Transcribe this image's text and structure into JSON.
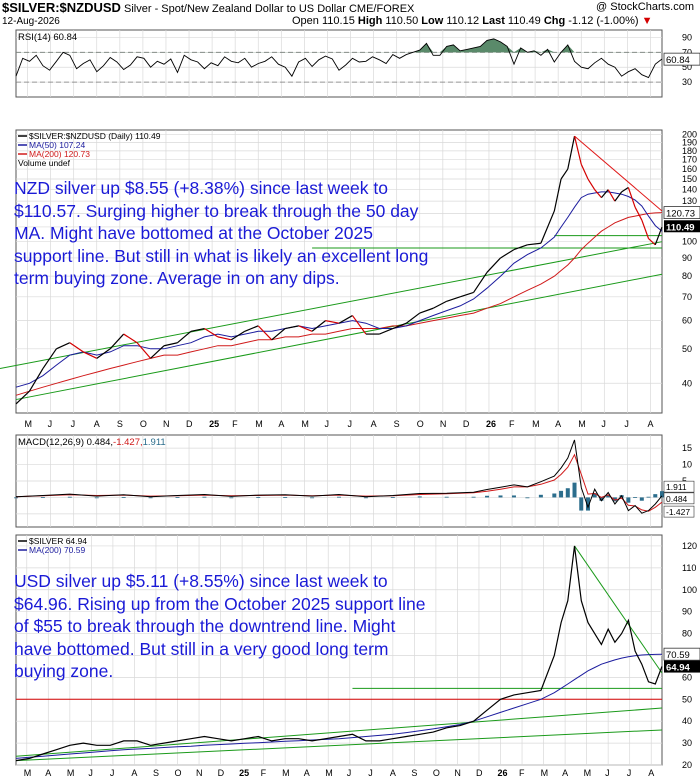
{
  "header": {
    "symbol": "$SILVER:$NZDUSD",
    "description": "Silver - Spot/New Zealand Dollar to US Dollar  CME/FOREX",
    "watermark": "@ StockCharts.com",
    "date": "12-Aug-2026",
    "quote": {
      "open_label": "Open",
      "open": "110.15",
      "high_label": "High",
      "high": "110.50",
      "low_label": "Low",
      "low": "110.12",
      "last_label": "Last",
      "last": "110.49",
      "chg_label": "Chg",
      "chg": "-1.12 (-1.00%)",
      "chg_arrow": "▼"
    }
  },
  "annotations": {
    "nzd_note": "NZD silver up $8.55 (+8.38%) since last week to $110.57. Surging higher to break through the 50 day MA. Might have bottomed at the October 2025 support line. But still in what is likely an excellent long term buying zone. Average in on any dips.",
    "usd_note": "USD silver up $5.11 (+8.55%) since last week to $64.96. Rising up from the October 2025 support line of $55 to break through the downtrend line. Might have bottomed. But still in a very good long term buying zone."
  },
  "colors": {
    "price_up": "#000000",
    "price_down": "#d40000",
    "ma50": "#1c1c9e",
    "ma200": "#d01a1a",
    "trendline": "#1a9a1a",
    "resistance": "#e01818",
    "rsi_line": "#000000",
    "rsi_overbought_fill": "#5a8a6a",
    "macd_line": "#000000",
    "macd_signal": "#d01a1a",
    "macd_hist": "#2b6d8c",
    "grid": "#d9d9d9",
    "note_text": "#1a1ad6"
  },
  "chart_data": [
    {
      "type": "line",
      "id": "rsi",
      "title": "RSI(14) 60.84",
      "last_value": "60.84",
      "ylim": [
        10,
        100
      ],
      "y_ticks": [
        "90",
        "70",
        "50",
        "30"
      ],
      "levels": [
        70,
        30
      ],
      "x": [
        0,
        6,
        12,
        18,
        24,
        30,
        36,
        42,
        48,
        54,
        60,
        66,
        72,
        78,
        84,
        90,
        96,
        102,
        108,
        114,
        120,
        126,
        132,
        138,
        144,
        150,
        156,
        162,
        168,
        174,
        180,
        186,
        192,
        198,
        204,
        210,
        216,
        222,
        228,
        234,
        240,
        246,
        252,
        258,
        264,
        270,
        276,
        282,
        288,
        294,
        300,
        306,
        312,
        318,
        324,
        330,
        336,
        342,
        348,
        354,
        360,
        366,
        372,
        378,
        384,
        390,
        396,
        402,
        408,
        414,
        420,
        426,
        432,
        438,
        444,
        450,
        456,
        462,
        468,
        474,
        480,
        486,
        492,
        498,
        504,
        510,
        516,
        522,
        528,
        534,
        540,
        546,
        552,
        558,
        564,
        570,
        576
      ],
      "values": [
        38,
        62,
        58,
        66,
        52,
        46,
        58,
        70,
        66,
        48,
        55,
        60,
        44,
        52,
        63,
        57,
        47,
        53,
        64,
        62,
        50,
        58,
        54,
        61,
        43,
        66,
        60,
        57,
        48,
        56,
        52,
        64,
        58,
        56,
        62,
        50,
        55,
        58,
        64,
        54,
        50,
        38,
        57,
        62,
        51,
        60,
        65,
        61,
        46,
        53,
        62,
        57,
        58,
        64,
        60,
        55,
        67,
        62,
        67,
        70,
        73,
        82,
        66,
        66,
        78,
        80,
        72,
        74,
        76,
        78,
        86,
        88,
        84,
        78,
        54,
        76,
        70,
        72,
        66,
        74,
        57,
        70,
        80,
        58,
        50,
        48,
        56,
        62,
        54,
        50,
        38,
        44,
        48,
        40,
        36,
        54,
        61
      ]
    },
    {
      "type": "line",
      "id": "price_nzd",
      "title": "$SILVER:$NZDUSD (Daily) 110.49",
      "legend": [
        {
          "label": "$SILVER:$NZDUSD (Daily) 110.49",
          "swatch": "price"
        },
        {
          "label": "MA(50) 107.24",
          "swatch": "ma50"
        },
        {
          "label": "MA(200) 120.73",
          "swatch": "ma200"
        },
        {
          "label": "Volume undef",
          "swatch": "none"
        }
      ],
      "y_scale": "log",
      "ylim": [
        33,
        206
      ],
      "y_ticks": [
        "200",
        "190",
        "180",
        "170",
        "160",
        "150",
        "140",
        "130",
        "120",
        "110",
        "100",
        "90",
        "80",
        "70",
        "60",
        "50",
        "40"
      ],
      "price_tags": [
        {
          "text": "120.73",
          "y": 120.73,
          "style": "outline"
        },
        {
          "text": "110.49",
          "y": 110.49,
          "style": "filled"
        }
      ],
      "x_labels": [
        "M",
        "J",
        "J",
        "A",
        "S",
        "O",
        "N",
        "D",
        "25",
        "F",
        "M",
        "A",
        "M",
        "J",
        "J",
        "A",
        "S",
        "O",
        "N",
        "D",
        "26",
        "F",
        "M",
        "A",
        "M",
        "J",
        "J",
        "A"
      ],
      "bold_x_labels": [
        "25",
        "26"
      ],
      "x": [
        0,
        12,
        24,
        36,
        48,
        60,
        72,
        84,
        96,
        108,
        120,
        132,
        144,
        156,
        168,
        180,
        192,
        204,
        216,
        228,
        240,
        252,
        264,
        276,
        288,
        300,
        312,
        324,
        336,
        348,
        360,
        372,
        384,
        396,
        408,
        420,
        432,
        444,
        456,
        468,
        480,
        486,
        492,
        498,
        504,
        510,
        516,
        522,
        528,
        534,
        540,
        546,
        552,
        558,
        564,
        570,
        576
      ],
      "series": [
        {
          "name": "$SILVER:$NZDUSD",
          "values": [
            35,
            38,
            44,
            50,
            52,
            49,
            47,
            50,
            55,
            52,
            47,
            51,
            52,
            56,
            57,
            54,
            53,
            56,
            58,
            53,
            57,
            58,
            56,
            60,
            59,
            62,
            55,
            55,
            57,
            59,
            63,
            65,
            68,
            70,
            72,
            82,
            90,
            95,
            98,
            99,
            122,
            150,
            160,
            198,
            165,
            150,
            140,
            133,
            140,
            130,
            138,
            142,
            125,
            115,
            102,
            98,
            110
          ]
        },
        {
          "name": "MA(50)",
          "values": [
            39,
            40,
            42,
            45,
            48,
            49,
            48,
            49,
            51,
            51,
            50,
            50,
            51,
            52,
            54,
            55,
            54,
            55,
            56,
            56,
            57,
            58,
            57,
            58,
            59,
            60,
            59,
            57,
            57,
            58,
            60,
            62,
            64,
            66,
            69,
            74,
            80,
            87,
            92,
            96,
            103,
            110,
            117,
            125,
            133,
            136,
            137,
            138,
            138,
            137,
            136,
            134,
            131,
            126,
            118,
            111,
            107
          ]
        },
        {
          "name": "MA(200)",
          "values": [
            37,
            38,
            39,
            40,
            41,
            42,
            43,
            44,
            45,
            46,
            47,
            48,
            48,
            49,
            50,
            51,
            51,
            52,
            53,
            53,
            54,
            54,
            55,
            55,
            56,
            57,
            57,
            57,
            58,
            58,
            59,
            60,
            61,
            62,
            63,
            65,
            67,
            70,
            73,
            76,
            80,
            83,
            86,
            90,
            95,
            99,
            103,
            107,
            110,
            113,
            115,
            117,
            118,
            119,
            120,
            120.5,
            120.7
          ]
        }
      ]
    },
    {
      "type": "line",
      "id": "macd",
      "title": "MACD(12,26,9) 0.484, -1.427, 1.911",
      "legend_parts": [
        {
          "text": "MACD(12,26,9) 0.484, ",
          "color": "#000000"
        },
        {
          "text": "-1.427, ",
          "color": "#d01a1a"
        },
        {
          "text": "1.911",
          "color": "#2b6d8c"
        }
      ],
      "ylim": [
        -9,
        19
      ],
      "y_ticks": [
        "15",
        "10",
        "5",
        "0",
        "-5"
      ],
      "price_tags": [
        "1.911",
        "0.484",
        "-1.427"
      ],
      "x": [
        0,
        24,
        48,
        72,
        96,
        120,
        144,
        168,
        192,
        216,
        240,
        264,
        288,
        312,
        336,
        360,
        384,
        408,
        420,
        432,
        444,
        456,
        468,
        480,
        486,
        492,
        498,
        504,
        510,
        516,
        522,
        528,
        534,
        540,
        546,
        552,
        558,
        564,
        570,
        576
      ],
      "series": [
        {
          "name": "MACD",
          "values": [
            0.2,
            0.6,
            1.0,
            0.4,
            0.8,
            0.2,
            0.6,
            0.9,
            0.3,
            0.7,
            0.8,
            0.4,
            0.9,
            0.2,
            0.6,
            1.2,
            1.3,
            1.6,
            2.4,
            3.1,
            3.8,
            3.2,
            4.8,
            6.5,
            9.0,
            12.0,
            17.5,
            3.0,
            -3.0,
            2.5,
            -1.0,
            1.5,
            -2.0,
            0.5,
            -4.0,
            -2.5,
            -4.8,
            -4.0,
            -2.0,
            0.484
          ]
        },
        {
          "name": "Signal",
          "values": [
            0.2,
            0.5,
            0.8,
            0.6,
            0.7,
            0.4,
            0.5,
            0.7,
            0.5,
            0.6,
            0.7,
            0.5,
            0.7,
            0.4,
            0.5,
            0.9,
            1.1,
            1.4,
            1.9,
            2.5,
            3.2,
            3.2,
            4.0,
            5.3,
            7.0,
            9.2,
            13.0,
            7.0,
            1.0,
            1.2,
            0.0,
            0.8,
            -0.8,
            -0.2,
            -2.4,
            -2.6,
            -3.8,
            -4.2,
            -3.0,
            -1.427
          ]
        },
        {
          "name": "Histogram",
          "values": [
            0.0,
            0.1,
            0.2,
            -0.2,
            0.1,
            -0.2,
            0.1,
            0.2,
            -0.2,
            0.1,
            0.1,
            -0.1,
            0.2,
            -0.2,
            0.1,
            0.3,
            0.2,
            0.2,
            0.5,
            0.6,
            0.6,
            0.0,
            0.8,
            1.2,
            2.0,
            2.8,
            4.5,
            -4.0,
            -4.0,
            1.3,
            -1.0,
            0.7,
            -1.2,
            0.7,
            -1.6,
            0.1,
            -1.0,
            0.2,
            1.0,
            1.911
          ]
        }
      ]
    },
    {
      "type": "line",
      "id": "price_usd",
      "title": "$SILVER 64.94",
      "legend": [
        {
          "label": "$SILVER 64.94",
          "swatch": "price"
        },
        {
          "label": "MA(200) 70.59",
          "swatch": "ma200blue"
        }
      ],
      "ylim": [
        20,
        125
      ],
      "y_ticks": [
        "120",
        "110",
        "100",
        "90",
        "80",
        "70",
        "60",
        "50",
        "40",
        "30",
        "20"
      ],
      "price_tags": [
        {
          "text": "70.59",
          "y": 70.59,
          "style": "outline"
        },
        {
          "text": "64.94",
          "y": 64.94,
          "style": "filled"
        }
      ],
      "x_labels": [
        "M",
        "A",
        "M",
        "J",
        "J",
        "A",
        "S",
        "O",
        "N",
        "D",
        "25",
        "F",
        "M",
        "A",
        "M",
        "J",
        "J",
        "A",
        "S",
        "O",
        "N",
        "D",
        "26",
        "F",
        "M",
        "A",
        "M",
        "J",
        "J",
        "A"
      ],
      "bold_x_labels": [
        "25",
        "26"
      ],
      "x": [
        0,
        12,
        24,
        36,
        48,
        60,
        72,
        84,
        96,
        108,
        120,
        132,
        144,
        156,
        168,
        180,
        192,
        204,
        216,
        228,
        240,
        252,
        264,
        276,
        288,
        300,
        312,
        324,
        336,
        348,
        360,
        372,
        384,
        396,
        408,
        420,
        432,
        444,
        456,
        468,
        480,
        486,
        492,
        498,
        504,
        510,
        516,
        522,
        528,
        534,
        540,
        546,
        552,
        558,
        564,
        570,
        576
      ],
      "series": [
        {
          "name": "$SILVER",
          "values": [
            22,
            23,
            25,
            27,
            29,
            30,
            29,
            29,
            31,
            31,
            29,
            30,
            31,
            32,
            33,
            32,
            31,
            32,
            33,
            31,
            32,
            32,
            31,
            32,
            33,
            34,
            31,
            31,
            32,
            33,
            34,
            35,
            37,
            38,
            40,
            45,
            50,
            52,
            53,
            54,
            70,
            85,
            95,
            120,
            95,
            85,
            80,
            75,
            82,
            76,
            80,
            86,
            72,
            66,
            58,
            57,
            65
          ]
        },
        {
          "name": "MA(200)",
          "values": [
            23,
            23.5,
            24,
            24.5,
            25,
            25.5,
            26,
            26.5,
            27,
            27.3,
            27.6,
            28,
            28.3,
            28.6,
            29,
            29.3,
            29.6,
            29.9,
            30.2,
            30.5,
            30.8,
            31.1,
            31.4,
            31.7,
            32,
            32.5,
            33,
            33.5,
            34,
            34.8,
            35.6,
            36.5,
            37.5,
            38.5,
            40,
            42,
            44,
            46,
            48,
            50,
            53,
            55,
            57,
            59,
            61,
            63,
            64.5,
            66,
            67,
            68,
            68.8,
            69.4,
            69.9,
            70.2,
            70.4,
            70.5,
            70.59
          ]
        }
      ]
    }
  ]
}
